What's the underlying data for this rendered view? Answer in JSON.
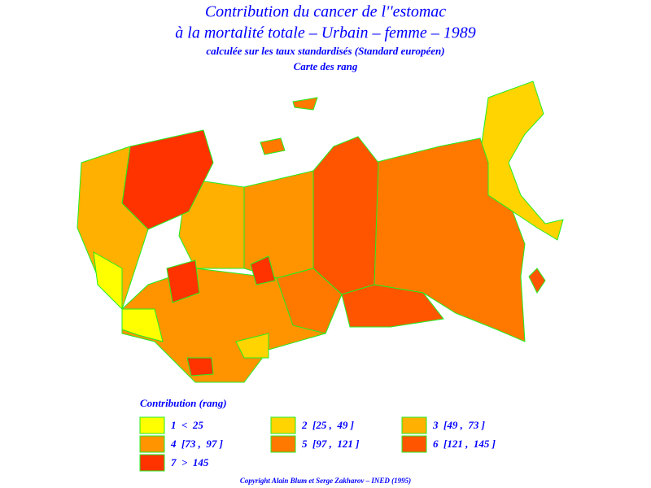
{
  "header": {
    "title": "Contribution du cancer de l''estomac",
    "subtitle": "à la mortalité totale – Urbain – femme – 1989",
    "note": "calculée sur les taux standardisés (Standard européen)",
    "map_label": "Carte des rang"
  },
  "legend": {
    "title": "Contribution (rang)",
    "items": [
      {
        "label": "1  <  25",
        "color": "#ffff00"
      },
      {
        "label": "2  [25 ,  49 ]",
        "color": "#ffd400"
      },
      {
        "label": "3  [49 ,  73 ]",
        "color": "#ffb000"
      },
      {
        "label": "4  [73 ,  97 ]",
        "color": "#ff9400"
      },
      {
        "label": "5  [97 ,  121 ]",
        "color": "#ff7800"
      },
      {
        "label": "6  [121 ,  145 ]",
        "color": "#ff5500"
      },
      {
        "label": "7  >  145",
        "color": "#ff3300"
      }
    ]
  },
  "footer": {
    "copyright": "Copyright Alain Blum et Serge Zakharov – INED (1995)"
  }
}
